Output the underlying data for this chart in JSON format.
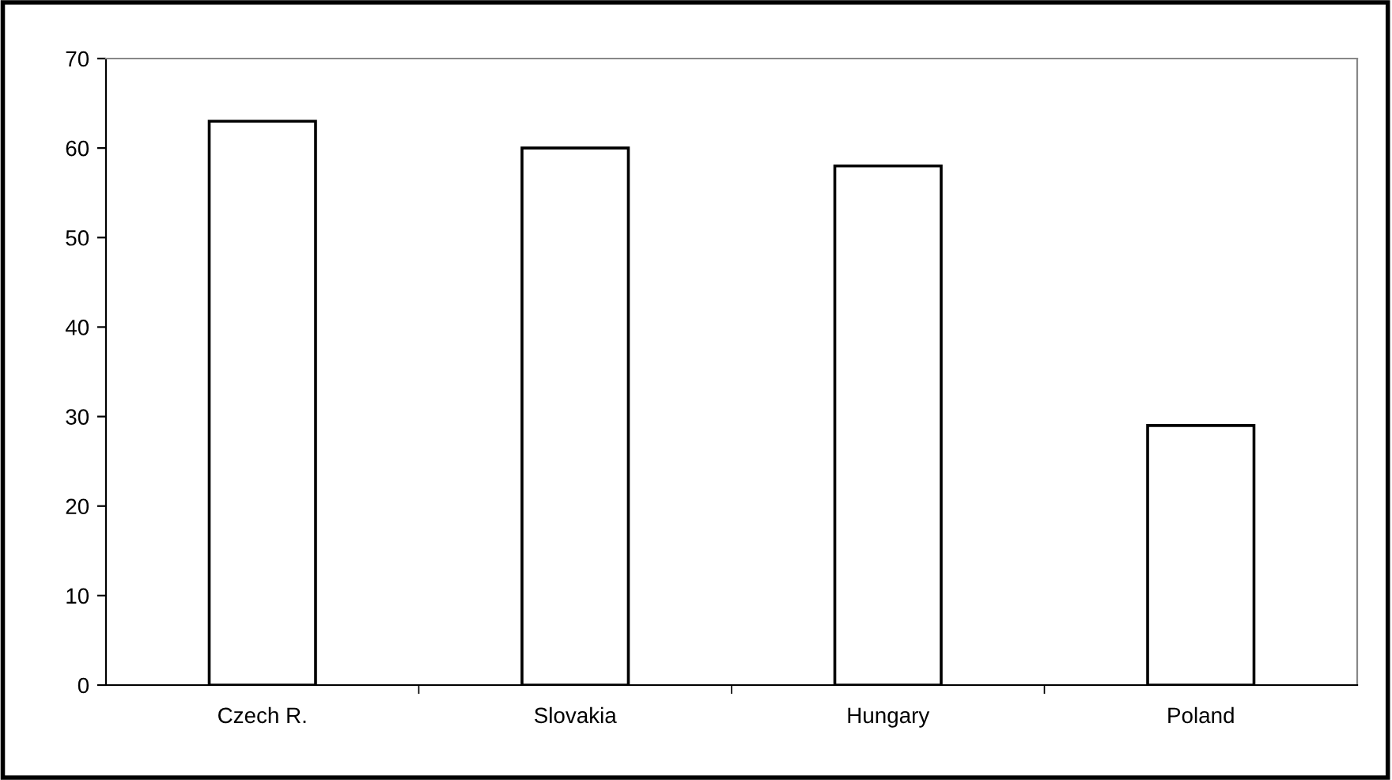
{
  "chart_data": {
    "type": "bar",
    "categories": [
      "Czech R.",
      "Slovakia",
      "Hungary",
      "Poland"
    ],
    "values": [
      63,
      60,
      58,
      29
    ],
    "color": "#ffffff",
    "ylim": [
      0,
      70
    ],
    "yticks": [
      0,
      10,
      20,
      30,
      40,
      50,
      60,
      70
    ],
    "grid": false
  }
}
